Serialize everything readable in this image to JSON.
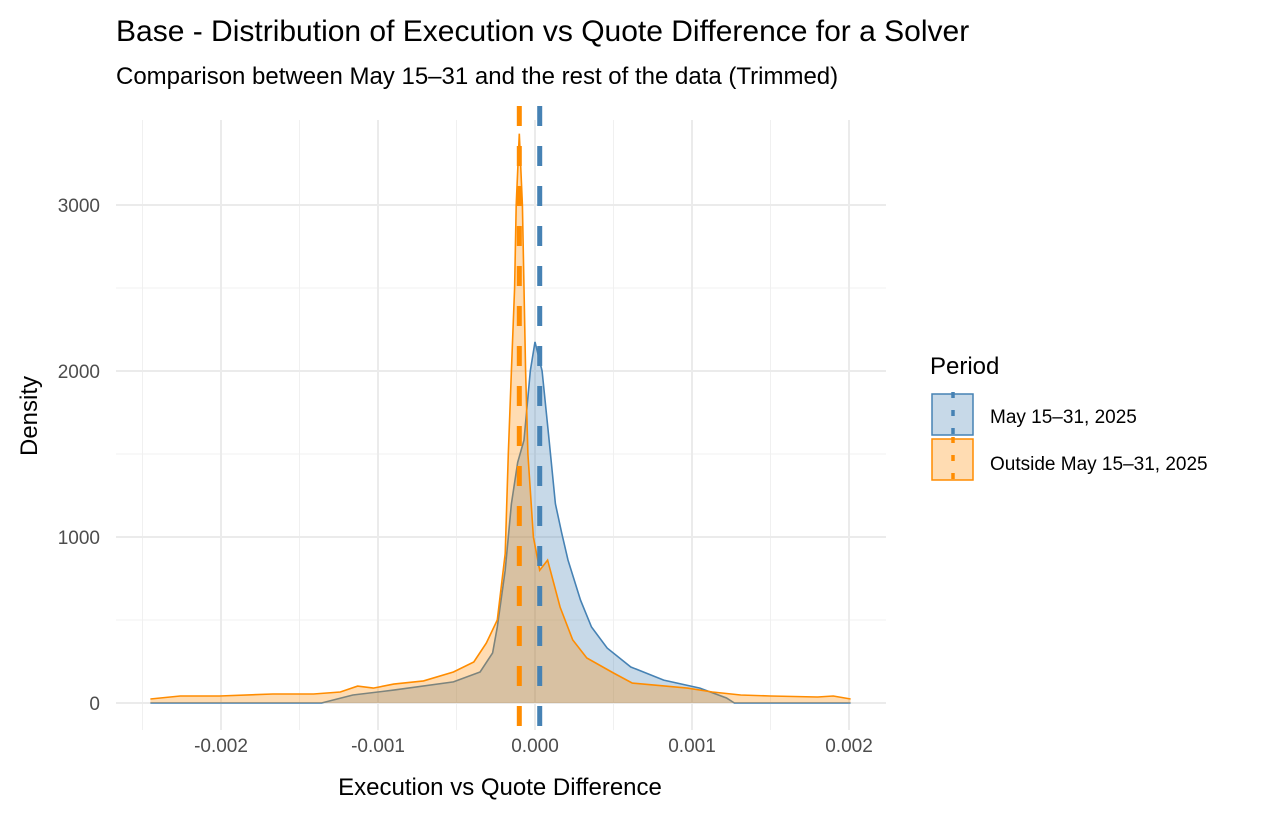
{
  "chart_data": {
    "type": "area",
    "title": "Base - Distribution of Execution vs Quote Difference for a Solver",
    "subtitle": "Comparison between May 15–31 and the rest of the data (Trimmed)",
    "xlabel": "Execution vs Quote Difference",
    "ylabel": "Density",
    "xlim": [
      -0.00255,
      0.00215
    ],
    "ylim": [
      -150,
      3500
    ],
    "x_ticks": [
      -0.002,
      -0.001,
      0.0,
      0.001,
      0.002
    ],
    "x_tick_labels": [
      "-0.002",
      "-0.001",
      "0.000",
      "0.001",
      "0.002"
    ],
    "y_ticks": [
      0,
      1000,
      2000,
      3000
    ],
    "y_tick_labels": [
      "0",
      "1000",
      "2000",
      "3000"
    ],
    "grid": true,
    "legend": {
      "title": "Period",
      "position": "right",
      "entries": [
        "May 15–31, 2025",
        "Outside May 15–31, 2025"
      ]
    },
    "series": [
      {
        "name": "May 15–31, 2025",
        "color": "#4682B4",
        "fill": "#4682B4",
        "mean_line_x": 3e-05,
        "points": [
          [
            -0.00245,
            0
          ],
          [
            -0.00136,
            0
          ],
          [
            -0.00116,
            48
          ],
          [
            -0.0009,
            78
          ],
          [
            -0.00052,
            127
          ],
          [
            -0.00035,
            187
          ],
          [
            -0.00027,
            301
          ],
          [
            -0.00024,
            458
          ],
          [
            -0.00019,
            800
          ],
          [
            -0.00015,
            1200
          ],
          [
            -0.00011,
            1450
          ],
          [
            -7e-05,
            1584
          ],
          [
            -3e-05,
            2000
          ],
          [
            0.0,
            2175
          ],
          [
            4.5e-05,
            2000
          ],
          [
            9e-05,
            1584
          ],
          [
            0.00013,
            1200
          ],
          [
            0.00017,
            1024
          ],
          [
            0.00021,
            861
          ],
          [
            0.00029,
            620
          ],
          [
            0.00036,
            458
          ],
          [
            0.00046,
            331
          ],
          [
            0.00061,
            217
          ],
          [
            0.00082,
            138
          ],
          [
            0.00105,
            90
          ],
          [
            0.00122,
            30
          ],
          [
            0.00127,
            0
          ],
          [
            0.00201,
            0
          ]
        ]
      },
      {
        "name": "Outside May 15–31, 2025",
        "color": "#FF8C00",
        "fill": "#FF8C00",
        "mean_line_x": -0.0001,
        "points": [
          [
            -0.00245,
            24
          ],
          [
            -0.00226,
            42
          ],
          [
            -0.00201,
            42
          ],
          [
            -0.00167,
            54
          ],
          [
            -0.00141,
            54
          ],
          [
            -0.00124,
            66
          ],
          [
            -0.00113,
            102
          ],
          [
            -0.00103,
            90
          ],
          [
            -0.0009,
            114
          ],
          [
            -0.00071,
            133
          ],
          [
            -0.00052,
            187
          ],
          [
            -0.00039,
            247
          ],
          [
            -0.00031,
            361
          ],
          [
            -0.00024,
            500
          ],
          [
            -0.00019,
            900
          ],
          [
            -0.00017,
            1500
          ],
          [
            -0.00015,
            2000
          ],
          [
            -0.00013,
            2500
          ],
          [
            -0.00012,
            3000
          ],
          [
            -0.0001,
            3430
          ],
          [
            -8e-05,
            3000
          ],
          [
            -7e-05,
            2500
          ],
          [
            -6e-05,
            2000
          ],
          [
            -4.5e-05,
            1500
          ],
          [
            -1e-05,
            1000
          ],
          [
            3e-05,
            800
          ],
          [
            8e-05,
            861
          ],
          [
            0.00016,
            578
          ],
          [
            0.00024,
            380
          ],
          [
            0.00033,
            271
          ],
          [
            0.0005,
            181
          ],
          [
            0.00062,
            120
          ],
          [
            0.00097,
            90
          ],
          [
            0.00113,
            66
          ],
          [
            0.00131,
            48
          ],
          [
            0.0015,
            42
          ],
          [
            0.0018,
            36
          ],
          [
            0.0019,
            42
          ],
          [
            0.00201,
            24
          ]
        ]
      }
    ]
  }
}
